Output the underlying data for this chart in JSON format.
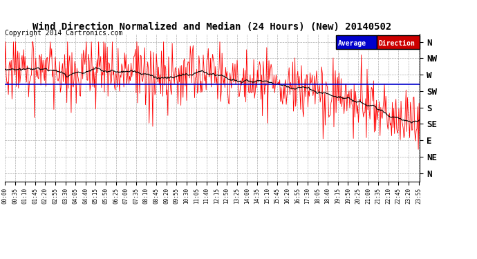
{
  "title": "Wind Direction Normalized and Median (24 Hours) (New) 20140502",
  "copyright": "Copyright 2014 Cartronics.com",
  "ytick_labels": [
    "N",
    "NW",
    "W",
    "SW",
    "S",
    "SE",
    "E",
    "NE",
    "N"
  ],
  "ytick_values": [
    0,
    1,
    2,
    3,
    4,
    5,
    6,
    7,
    8
  ],
  "legend_labels": [
    "Average",
    "Direction"
  ],
  "legend_bg_colors": [
    "#0000cc",
    "#cc0000"
  ],
  "line_color_normalized": "#ff0000",
  "line_color_median": "#000000",
  "avg_line_color": "#0000cc",
  "avg_line_value": 2.6,
  "background_color": "#ffffff",
  "grid_color": "#999999",
  "title_fontsize": 10,
  "copyright_fontsize": 7,
  "base_trend_t": [
    0,
    300,
    500,
    700,
    900,
    1050,
    1150,
    1250,
    1350,
    1439
  ],
  "base_trend_vals": [
    1.5,
    1.8,
    2.0,
    2.2,
    2.5,
    2.8,
    3.2,
    3.8,
    4.5,
    4.8
  ],
  "noise_scale": 0.9,
  "random_seed": 17
}
